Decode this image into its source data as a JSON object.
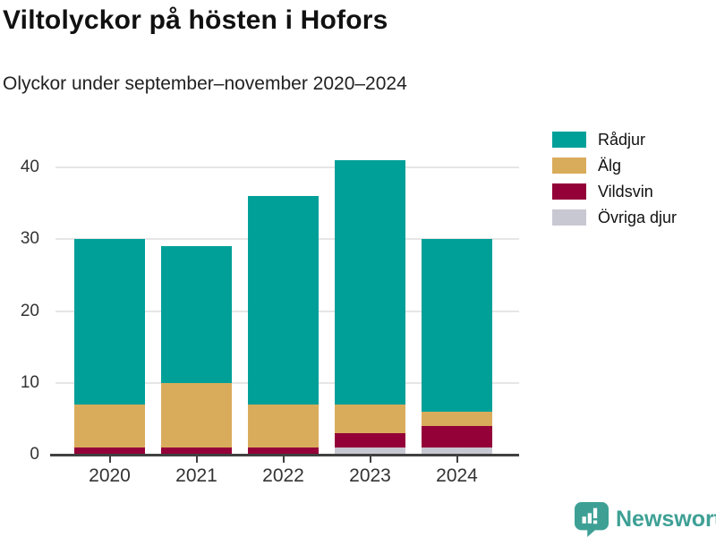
{
  "header": {
    "title": "Viltolyckor på hösten i Hofors",
    "subtitle": "Olyckor under september–november 2020–2024"
  },
  "chart_data": {
    "type": "bar",
    "stacked": true,
    "title": "Viltolyckor på hösten i Hofors",
    "subtitle": "Olyckor under september–november 2020–2024",
    "categories": [
      "2020",
      "2021",
      "2022",
      "2023",
      "2024"
    ],
    "series": [
      {
        "name": "Rådjur",
        "color": "#00a099",
        "values": [
          23,
          19,
          29,
          34,
          24
        ]
      },
      {
        "name": "Älg",
        "color": "#d9ac5c",
        "values": [
          6,
          9,
          6,
          4,
          2
        ]
      },
      {
        "name": "Vildsvin",
        "color": "#940038",
        "values": [
          1,
          1,
          1,
          2,
          3
        ]
      },
      {
        "name": "Övriga djur",
        "color": "#c8c8d2",
        "values": [
          0,
          0,
          0,
          1,
          1
        ]
      }
    ],
    "totals": [
      30,
      29,
      36,
      41,
      30
    ],
    "xlabel": "",
    "ylabel": "",
    "yticks": [
      0,
      10,
      20,
      30,
      40
    ],
    "ylim": [
      0,
      46
    ],
    "grid": true,
    "legend_position": "right",
    "axis_color": "#404040",
    "gridline_color": "#e6e6e6",
    "tick_label_color": "#333333"
  },
  "footer": {
    "brand": "Newsworthy",
    "brand_color": "#3ea095"
  }
}
